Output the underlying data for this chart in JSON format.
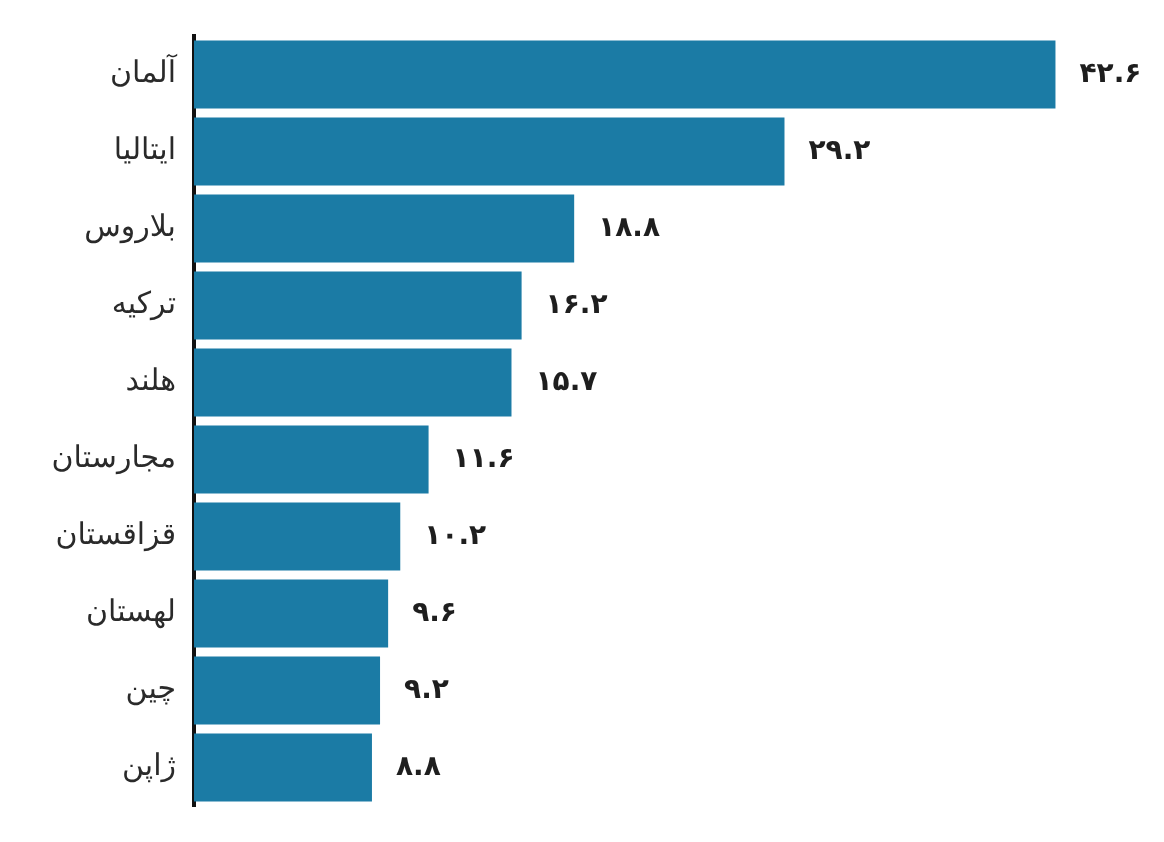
{
  "chart_data": {
    "type": "bar",
    "orientation": "horizontal",
    "categories": [
      "آلمان",
      "ایتالیا",
      "بلاروس",
      "ترکیه",
      "هلند",
      "مجارستان",
      "قزاقستان",
      "لهستان",
      "چین",
      "ژاپن"
    ],
    "values": [
      42.6,
      29.2,
      18.8,
      16.2,
      15.7,
      11.6,
      10.2,
      9.6,
      9.2,
      8.8
    ],
    "value_labels": [
      "۴۲.۶",
      "۲۹.۲",
      "۱۸.۸",
      "۱۶.۲",
      "۱۵.۷",
      "۱۱.۶",
      "۱۰.۲",
      "۹.۶",
      "۹.۲",
      "۸.۸"
    ],
    "color": "#1b7ba5",
    "legend": false,
    "tick_labels": "y"
  }
}
